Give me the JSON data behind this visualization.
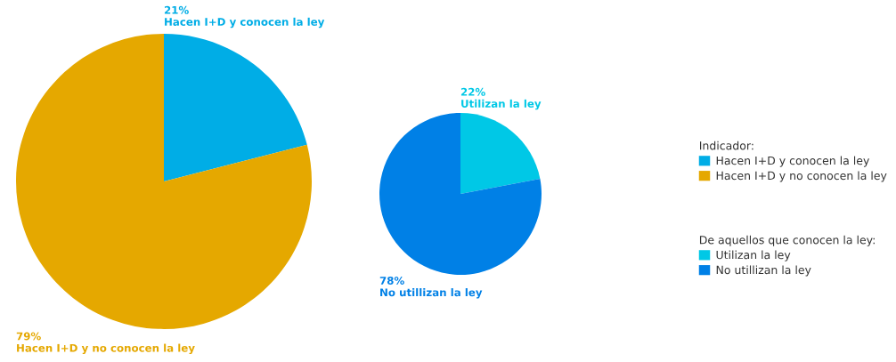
{
  "chart_data": [
    {
      "type": "pie",
      "legend_title": "Indicador:",
      "legend": "right",
      "categories": [
        "Hacen I+D y conocen la ley",
        "Hacen I+D y no conocen la ley"
      ],
      "values": [
        21,
        79
      ],
      "colors": [
        "#00ade6",
        "#e5a800"
      ],
      "value_labels": [
        "21%",
        "79%"
      ]
    },
    {
      "type": "pie",
      "legend_title": "De aquellos que conocen la ley:",
      "legend": "right",
      "categories": [
        "Utilizan la ley",
        "No utillizan la ley"
      ],
      "values": [
        22,
        78
      ],
      "colors": [
        "#00c8e6",
        "#0080e6"
      ],
      "value_labels": [
        "22%",
        "78%"
      ]
    }
  ]
}
